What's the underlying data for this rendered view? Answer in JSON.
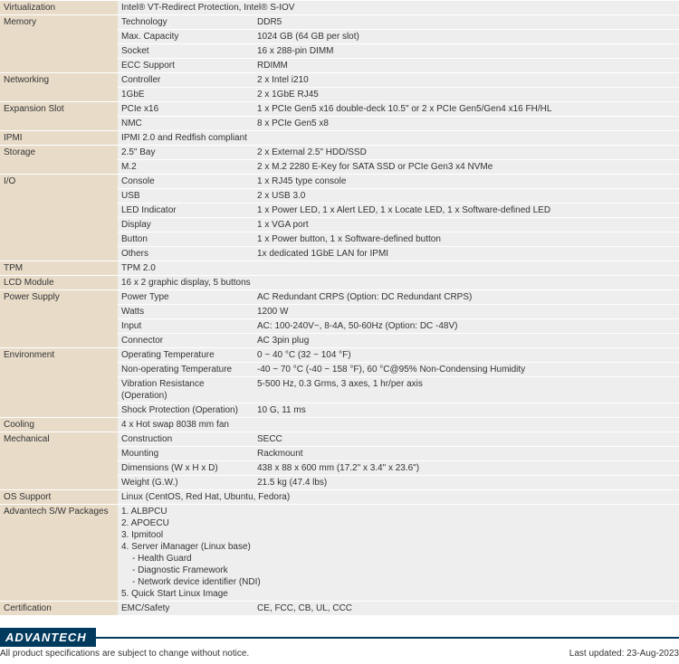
{
  "colors": {
    "category_bg": "#e8dcc9",
    "row_bg": "#eeeeee",
    "border": "#ffffff",
    "footer_bar": "#003a5d",
    "text": "#333333"
  },
  "font": {
    "family": "Arial",
    "size_pt": 7.5
  },
  "groups": [
    {
      "category": "Virtualization",
      "rows": [
        {
          "sub": "",
          "val": "Intel® VT-Redirect Protection, Intel® S-IOV"
        }
      ]
    },
    {
      "category": "Memory",
      "rows": [
        {
          "sub": "Technology",
          "val": "DDR5"
        },
        {
          "sub": "Max. Capacity",
          "val": "1024 GB (64 GB per slot)"
        },
        {
          "sub": "Socket",
          "val": "16 x 288-pin DIMM"
        },
        {
          "sub": "ECC Support",
          "val": "RDIMM"
        }
      ]
    },
    {
      "category": "Networking",
      "rows": [
        {
          "sub": "Controller",
          "val": "2 x Intel i210"
        },
        {
          "sub": "1GbE",
          "val": "2 x 1GbE RJ45"
        }
      ]
    },
    {
      "category": "Expansion Slot",
      "rows": [
        {
          "sub": "PCIe x16",
          "val": "1 x PCIe Gen5 x16 double-deck 10.5\" or 2 x PCIe Gen5/Gen4 x16 FH/HL"
        },
        {
          "sub": "NMC",
          "val": "8 x PCIe Gen5 x8"
        }
      ]
    },
    {
      "category": "IPMI",
      "rows": [
        {
          "sub": "",
          "val": "IPMI 2.0 and Redfish compliant"
        }
      ]
    },
    {
      "category": "Storage",
      "rows": [
        {
          "sub": "2.5\" Bay",
          "val": "2 x External 2.5\" HDD/SSD"
        },
        {
          "sub": "M.2",
          "val": "2 x M.2 2280 E-Key for SATA SSD or PCIe Gen3 x4 NVMe"
        }
      ]
    },
    {
      "category": "I/O",
      "rows": [
        {
          "sub": "Console",
          "val": "1 x RJ45 type console"
        },
        {
          "sub": "USB",
          "val": "2 x USB 3.0"
        },
        {
          "sub": "LED Indicator",
          "val": "1 x Power LED, 1 x Alert LED, 1 x Locate LED, 1 x Software-defined LED"
        },
        {
          "sub": "Display",
          "val": "1 x VGA port"
        },
        {
          "sub": "Button",
          "val": "1 x Power button, 1 x Software-defined button"
        },
        {
          "sub": "Others",
          "val": "1x dedicated 1GbE LAN for IPMI"
        }
      ]
    },
    {
      "category": "TPM",
      "rows": [
        {
          "sub": "",
          "val": "TPM 2.0"
        }
      ]
    },
    {
      "category": "LCD Module",
      "rows": [
        {
          "sub": "",
          "val": "16 x 2 graphic display, 5 buttons"
        }
      ]
    },
    {
      "category": "Power Supply",
      "rows": [
        {
          "sub": "Power Type",
          "val": "AC Redundant CRPS (Option: DC Redundant CRPS)"
        },
        {
          "sub": "Watts",
          "val": "1200 W"
        },
        {
          "sub": "Input",
          "val": "AC: 100-240V~, 8-4A, 50-60Hz (Option: DC -48V)"
        },
        {
          "sub": "Connector",
          "val": "AC 3pin plug"
        }
      ]
    },
    {
      "category": "Environment",
      "rows": [
        {
          "sub": "Operating Temperature",
          "val": "0 ~ 40 °C (32 ~ 104 °F)"
        },
        {
          "sub": "Non-operating Temperature",
          "val": "-40 ~ 70 °C (-40 ~ 158 °F), 60 °C@95% Non-Condensing Humidity"
        },
        {
          "sub": "Vibration Resistance (Operation)",
          "val": "5-500 Hz, 0.3 Grms, 3 axes, 1 hr/per axis"
        },
        {
          "sub": "Shock Protection (Operation)",
          "val": "10 G, 11 ms"
        }
      ]
    },
    {
      "category": "Cooling",
      "rows": [
        {
          "sub": "",
          "val": "4 x Hot swap 8038 mm fan"
        }
      ]
    },
    {
      "category": "Mechanical",
      "rows": [
        {
          "sub": "Construction",
          "val": "SECC"
        },
        {
          "sub": "Mounting",
          "val": "Rackmount"
        },
        {
          "sub": "Dimensions (W x H x D)",
          "val": "438 x 88 x 600 mm (17.2\" x 3.4\" x  23.6\")"
        },
        {
          "sub": "Weight (G.W.)",
          "val": "21.5 kg (47.4 lbs)"
        }
      ]
    },
    {
      "category": "OS Support",
      "rows": [
        {
          "sub": "",
          "val": "Linux (CentOS, Red Hat, Ubuntu, Fedora)"
        }
      ]
    },
    {
      "category": "Advantech S/W Packages",
      "rows": [
        {
          "sub": "",
          "val_lines": [
            "1. ALBPCU",
            "2. APOECU",
            "3. Ipmitool",
            "4. Server iManager (Linux base)",
            {
              "indent": true,
              "text": "- Health Guard"
            },
            {
              "indent": true,
              "text": "- Diagnostic Framework"
            },
            {
              "indent": true,
              "text": "- Network device identifier (NDI)"
            },
            "5. Quick Start Linux Image"
          ]
        }
      ]
    },
    {
      "category": "Certification",
      "rows": [
        {
          "sub": "EMC/Safety",
          "val": "CE, FCC, CB, UL, CCC"
        }
      ]
    }
  ],
  "footer": {
    "logo": "ADVANTECH",
    "left": "All product specifications are subject to change without notice.",
    "right": "Last updated: 23-Aug-2023"
  }
}
